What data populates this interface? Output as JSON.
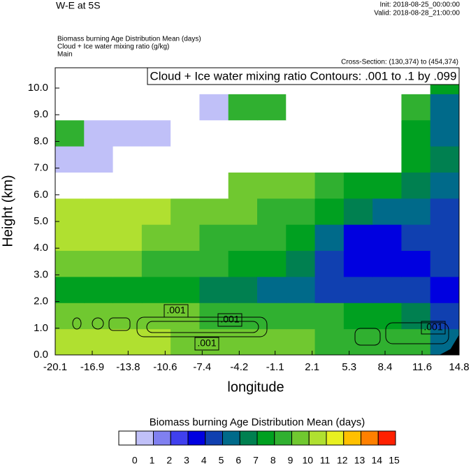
{
  "chart_data": {
    "type": "contourf",
    "title": "W-E at 5S",
    "init": "Init: 2018-08-25_00:00:00",
    "valid": "Valid: 2018-08-28_21:00:00",
    "field_titles": [
      "Biomass burning Age Distribution Mean   (days)",
      "Cloud + Ice water mixing ratio   (g/kg)",
      "Main"
    ],
    "cross_section": "Cross-Section: (130,374) to (454,374)",
    "contour_legend": "Cloud + Ice water mixing ratio Contours: .001 to .1 by .099",
    "contour_labels": [
      ".001",
      ".001",
      ".001",
      ".001"
    ],
    "x_label": "longitude",
    "y_label": "Height (km)",
    "xlim": [
      -20.1,
      14.8
    ],
    "xticks": [
      -20.1,
      -16.9,
      -13.8,
      -10.6,
      -7.4,
      -4.2,
      -1.1,
      2.1,
      5.3,
      8.4,
      11.6,
      14.8
    ],
    "ylim": [
      0,
      10.76
    ],
    "yticks": [
      {
        "value": 0,
        "label": "0.0"
      },
      {
        "value": 1,
        "label": "1.0"
      },
      {
        "value": 2,
        "label": "2.0"
      },
      {
        "value": 3,
        "label": "3.0"
      },
      {
        "value": 4,
        "label": "4.0"
      },
      {
        "value": 5,
        "label": "5.0"
      },
      {
        "value": 6,
        "label": "6.0"
      },
      {
        "value": 7,
        "label": "7.0"
      },
      {
        "value": 8,
        "label": "8.0"
      },
      {
        "value": 9,
        "label": "9.0"
      },
      {
        "value": 10,
        "label": "10.0"
      }
    ],
    "z": [
      [
        11,
        11,
        11,
        11,
        10,
        10,
        10,
        10,
        10,
        9,
        9,
        9,
        9,
        6
      ],
      [
        10,
        10,
        10,
        10,
        10,
        9,
        9,
        9,
        9,
        9,
        8,
        8,
        7,
        5
      ],
      [
        8,
        8,
        8,
        8,
        8,
        7,
        7,
        6,
        6,
        5,
        5,
        5,
        5,
        4
      ],
      [
        10,
        10,
        10,
        9,
        9,
        9,
        8,
        8,
        7,
        5,
        4,
        4,
        4,
        5
      ],
      [
        11,
        11,
        11,
        10,
        10,
        9,
        9,
        9,
        8,
        6,
        4,
        4,
        5,
        5
      ],
      [
        11,
        11,
        11,
        11,
        10,
        10,
        10,
        9,
        9,
        8,
        7,
        6,
        6,
        5
      ],
      [
        0,
        0,
        0,
        0,
        0,
        0,
        10,
        10,
        10,
        9,
        8,
        8,
        7,
        6
      ],
      [
        1,
        1,
        0,
        0,
        0,
        0,
        0,
        0,
        0,
        0,
        0,
        0,
        8,
        7
      ],
      [
        9,
        1,
        1,
        1,
        0,
        0,
        0,
        0,
        0,
        0,
        0,
        0,
        8,
        6
      ],
      [
        0,
        0,
        0,
        0,
        0,
        1,
        9,
        9,
        0,
        0,
        0,
        0,
        9,
        6
      ],
      [
        0,
        0,
        0,
        0,
        0,
        0,
        0,
        0,
        0,
        0,
        0,
        0,
        0,
        8
      ]
    ],
    "colorbar_title": "Biomass burning Age Distribution Mean  (days)",
    "levels": [
      0,
      1,
      2,
      3,
      4,
      5,
      6,
      7,
      8,
      9,
      10,
      11,
      12,
      13,
      14,
      15
    ],
    "colors": [
      "#ffffff",
      "#c0c0f8",
      "#8080f0",
      "#4040ee",
      "#0000e0",
      "#1040b0",
      "#006a8a",
      "#008050",
      "#00a020",
      "#30b030",
      "#70c830",
      "#b0e030",
      "#e8f020",
      "#ffc000",
      "#ff8000",
      "#ff2000"
    ]
  }
}
